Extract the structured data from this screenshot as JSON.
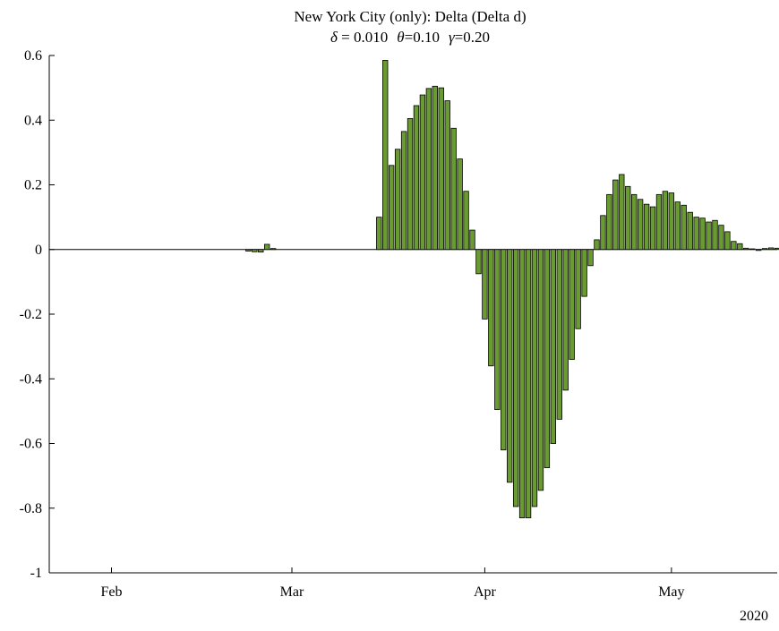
{
  "chart_data": {
    "type": "bar",
    "title": "New York City (only): Delta (Delta d)",
    "subtitle": {
      "delta_symbol": "δ",
      "delta_text": " = 0.010",
      "theta_symbol": "θ",
      "theta_text": "=0.10",
      "gamma_symbol": "γ",
      "gamma_text": "=0.20"
    },
    "xlabel": "",
    "ylabel": "",
    "ylim": [
      -1,
      0.6
    ],
    "yticks": [
      0.6,
      0.4,
      0.2,
      0,
      -0.2,
      -0.4,
      -0.6,
      -0.8,
      -1
    ],
    "ytick_labels": [
      "0.6",
      "0.4",
      "0.2",
      "0",
      "-0.2",
      "-0.4",
      "-0.6",
      "-0.8",
      "-1"
    ],
    "xlim": [
      "2020-01-22",
      "2020-05-18"
    ],
    "xticks": [
      {
        "date": "2020-02-01",
        "label": "Feb"
      },
      {
        "date": "2020-03-01",
        "label": "Mar"
      },
      {
        "date": "2020-04-01",
        "label": "Apr"
      },
      {
        "date": "2020-05-01",
        "label": "May"
      }
    ],
    "x_secondary_label": "2020",
    "bar_color": "#6a9a32",
    "bar_edge_color": "#000000",
    "grid": false,
    "box": false,
    "bars": [
      {
        "date": "2020-02-23",
        "value": -0.005
      },
      {
        "date": "2020-02-24",
        "value": -0.007
      },
      {
        "date": "2020-02-25",
        "value": -0.008
      },
      {
        "date": "2020-02-26",
        "value": 0.016
      },
      {
        "date": "2020-02-27",
        "value": 0.003
      },
      {
        "date": "2020-03-15",
        "value": 0.1
      },
      {
        "date": "2020-03-16",
        "value": 0.585
      },
      {
        "date": "2020-03-17",
        "value": 0.26
      },
      {
        "date": "2020-03-18",
        "value": 0.31
      },
      {
        "date": "2020-03-19",
        "value": 0.365
      },
      {
        "date": "2020-03-20",
        "value": 0.405
      },
      {
        "date": "2020-03-21",
        "value": 0.445
      },
      {
        "date": "2020-03-22",
        "value": 0.478
      },
      {
        "date": "2020-03-23",
        "value": 0.498
      },
      {
        "date": "2020-03-24",
        "value": 0.505
      },
      {
        "date": "2020-03-25",
        "value": 0.5
      },
      {
        "date": "2020-03-26",
        "value": 0.46
      },
      {
        "date": "2020-03-27",
        "value": 0.375
      },
      {
        "date": "2020-03-28",
        "value": 0.28
      },
      {
        "date": "2020-03-29",
        "value": 0.18
      },
      {
        "date": "2020-03-30",
        "value": 0.06
      },
      {
        "date": "2020-03-31",
        "value": -0.075
      },
      {
        "date": "2020-04-01",
        "value": -0.215
      },
      {
        "date": "2020-04-02",
        "value": -0.36
      },
      {
        "date": "2020-04-03",
        "value": -0.495
      },
      {
        "date": "2020-04-04",
        "value": -0.62
      },
      {
        "date": "2020-04-05",
        "value": -0.72
      },
      {
        "date": "2020-04-06",
        "value": -0.795
      },
      {
        "date": "2020-04-07",
        "value": -0.83
      },
      {
        "date": "2020-04-08",
        "value": -0.83
      },
      {
        "date": "2020-04-09",
        "value": -0.795
      },
      {
        "date": "2020-04-10",
        "value": -0.745
      },
      {
        "date": "2020-04-11",
        "value": -0.675
      },
      {
        "date": "2020-04-12",
        "value": -0.6
      },
      {
        "date": "2020-04-13",
        "value": -0.525
      },
      {
        "date": "2020-04-14",
        "value": -0.435
      },
      {
        "date": "2020-04-15",
        "value": -0.34
      },
      {
        "date": "2020-04-16",
        "value": -0.245
      },
      {
        "date": "2020-04-17",
        "value": -0.145
      },
      {
        "date": "2020-04-18",
        "value": -0.05
      },
      {
        "date": "2020-04-19",
        "value": 0.03
      },
      {
        "date": "2020-04-20",
        "value": 0.105
      },
      {
        "date": "2020-04-21",
        "value": 0.17
      },
      {
        "date": "2020-04-22",
        "value": 0.215
      },
      {
        "date": "2020-04-23",
        "value": 0.232
      },
      {
        "date": "2020-04-24",
        "value": 0.195
      },
      {
        "date": "2020-04-25",
        "value": 0.17
      },
      {
        "date": "2020-04-26",
        "value": 0.155
      },
      {
        "date": "2020-04-27",
        "value": 0.14
      },
      {
        "date": "2020-04-28",
        "value": 0.132
      },
      {
        "date": "2020-04-29",
        "value": 0.17
      },
      {
        "date": "2020-04-30",
        "value": 0.18
      },
      {
        "date": "2020-05-01",
        "value": 0.175
      },
      {
        "date": "2020-05-02",
        "value": 0.147
      },
      {
        "date": "2020-05-03",
        "value": 0.137
      },
      {
        "date": "2020-05-04",
        "value": 0.115
      },
      {
        "date": "2020-05-05",
        "value": 0.1
      },
      {
        "date": "2020-05-06",
        "value": 0.097
      },
      {
        "date": "2020-05-07",
        "value": 0.085
      },
      {
        "date": "2020-05-08",
        "value": 0.09
      },
      {
        "date": "2020-05-09",
        "value": 0.075
      },
      {
        "date": "2020-05-10",
        "value": 0.055
      },
      {
        "date": "2020-05-11",
        "value": 0.025
      },
      {
        "date": "2020-05-12",
        "value": 0.018
      },
      {
        "date": "2020-05-13",
        "value": 0.004
      },
      {
        "date": "2020-05-14",
        "value": 0.002
      },
      {
        "date": "2020-05-15",
        "value": -0.003
      },
      {
        "date": "2020-05-16",
        "value": 0.003
      },
      {
        "date": "2020-05-17",
        "value": 0.005
      },
      {
        "date": "2020-05-18",
        "value": 0.004
      }
    ]
  }
}
